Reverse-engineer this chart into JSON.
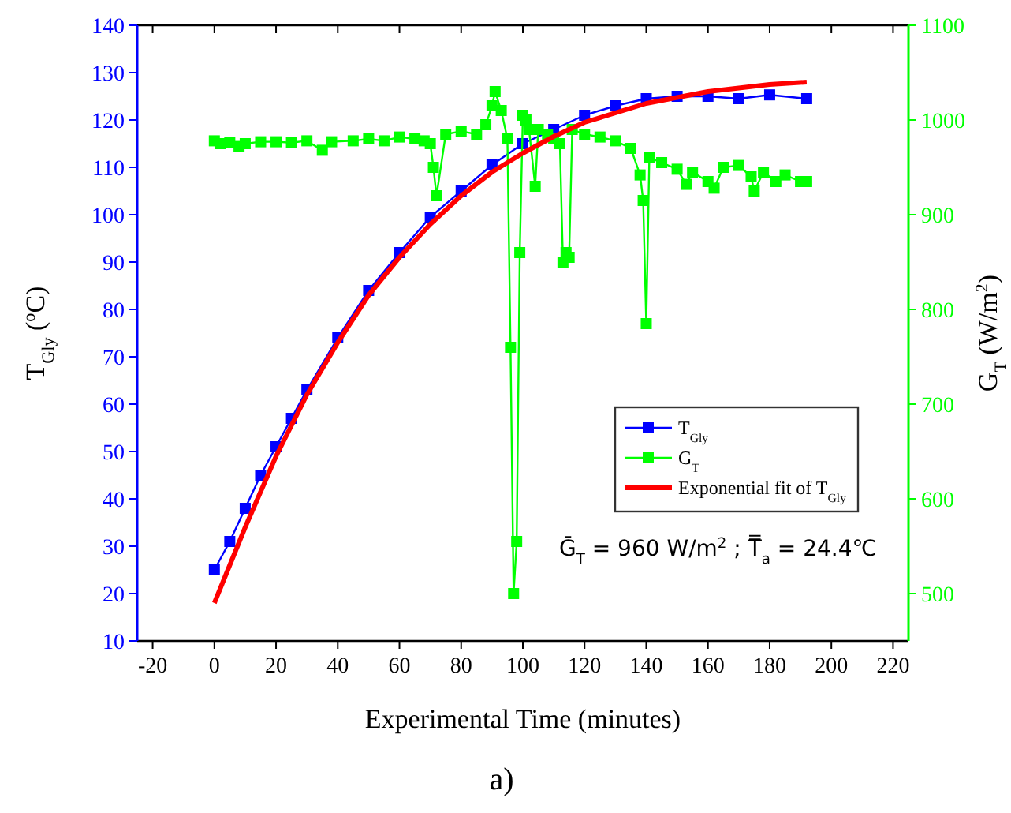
{
  "chart_data": {
    "type": "line",
    "xlabel": "Experimental Time (minutes)",
    "ylabel": "T$_{Gly}$ ($^{o}$C)",
    "y2label": "G$_{T}$ (W/m$^{2}$)",
    "xlim": [
      -25,
      225
    ],
    "xticks": [
      -20,
      0,
      20,
      40,
      60,
      80,
      100,
      120,
      140,
      160,
      180,
      200,
      220
    ],
    "ylim": [
      10,
      140
    ],
    "yticks": [
      10,
      20,
      30,
      40,
      50,
      60,
      70,
      80,
      90,
      100,
      110,
      120,
      130,
      140
    ],
    "y2lim": [
      450,
      1100
    ],
    "y2ticks": [
      500,
      600,
      700,
      800,
      900,
      1000,
      1100
    ],
    "legend": "right",
    "grid": false,
    "series": [
      {
        "name": "T$_{Gly}$",
        "color": "#0000ff",
        "marker": "square",
        "x": [
          0,
          5,
          10,
          15,
          20,
          25,
          30,
          40,
          50,
          60,
          70,
          80,
          90,
          100,
          110,
          120,
          130,
          140,
          150,
          160,
          170,
          180,
          192
        ],
        "values": [
          25,
          31,
          38,
          45,
          51,
          57,
          63,
          74,
          84,
          92,
          99.5,
          105,
          110.5,
          115,
          118,
          121,
          123,
          124.5,
          125,
          125,
          124.5,
          125.3,
          124.5
        ]
      },
      {
        "name": "G$_{T}$",
        "color": "#00ff00",
        "marker": "square",
        "axis": "y2",
        "x": [
          0,
          2,
          5,
          8,
          10,
          15,
          20,
          25,
          30,
          35,
          38,
          45,
          50,
          55,
          60,
          65,
          68,
          70,
          71,
          72,
          75,
          80,
          85,
          88,
          90,
          91,
          93,
          95,
          96,
          97,
          98,
          99,
          100,
          101,
          102,
          104,
          105,
          108,
          110,
          112,
          113,
          114,
          115,
          116,
          120,
          125,
          130,
          135,
          138,
          139,
          140,
          141,
          145,
          150,
          153,
          155,
          160,
          162,
          165,
          170,
          174,
          175,
          178,
          182,
          185,
          190,
          192
        ],
        "values": [
          978,
          975,
          976,
          972,
          975,
          977,
          977,
          976,
          978,
          968,
          977,
          978,
          980,
          978,
          982,
          980,
          978,
          975,
          950,
          920,
          985,
          988,
          985,
          995,
          1015,
          1030,
          1010,
          980,
          760,
          500,
          555,
          860,
          1005,
          1000,
          990,
          930,
          990,
          985,
          980,
          975,
          850,
          860,
          855,
          990,
          985,
          982,
          978,
          970,
          942,
          915,
          785,
          960,
          955,
          948,
          932,
          945,
          935,
          928,
          950,
          952,
          940,
          925,
          945,
          935,
          942,
          935,
          935
        ]
      },
      {
        "name": "Exponential fit of T$_{Gly}$",
        "color": "#ff0000",
        "marker": "none",
        "x": [
          0,
          10,
          20,
          30,
          40,
          50,
          60,
          70,
          80,
          90,
          100,
          110,
          120,
          140,
          160,
          180,
          192
        ],
        "values": [
          18,
          34,
          49,
          62,
          73,
          83,
          91,
          98,
          104,
          109,
          113,
          116.5,
          119.5,
          123.5,
          126,
          127.5,
          128
        ]
      }
    ],
    "annotations": [
      "Ḡ$_{T}$ = 960 W/m$^{2}$ ; T̿$_{a}$ = 24.4℃",
      "a)"
    ]
  }
}
